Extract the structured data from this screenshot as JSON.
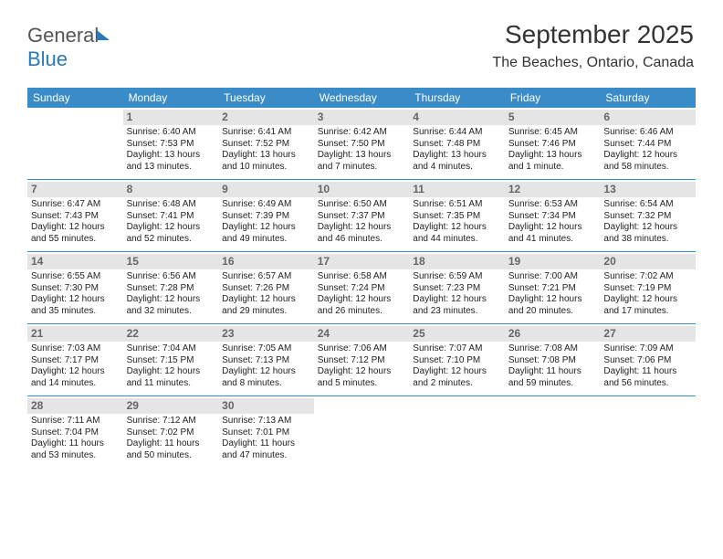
{
  "logo": {
    "text1": "General",
    "text2": "Blue"
  },
  "header": {
    "month_title": "September 2025",
    "location": "The Beaches, Ontario, Canada"
  },
  "colors": {
    "header_bg": "#3a8cc9",
    "header_fg": "#ffffff",
    "daynum_bg": "#e5e5e5",
    "daynum_fg": "#666666",
    "rule": "#3a8cc9"
  },
  "day_names": [
    "Sunday",
    "Monday",
    "Tuesday",
    "Wednesday",
    "Thursday",
    "Friday",
    "Saturday"
  ],
  "weeks": [
    [
      {
        "blank": true
      },
      {
        "n": "1",
        "sr": "Sunrise: 6:40 AM",
        "ss": "Sunset: 7:53 PM",
        "dl": "Daylight: 13 hours and 13 minutes."
      },
      {
        "n": "2",
        "sr": "Sunrise: 6:41 AM",
        "ss": "Sunset: 7:52 PM",
        "dl": "Daylight: 13 hours and 10 minutes."
      },
      {
        "n": "3",
        "sr": "Sunrise: 6:42 AM",
        "ss": "Sunset: 7:50 PM",
        "dl": "Daylight: 13 hours and 7 minutes."
      },
      {
        "n": "4",
        "sr": "Sunrise: 6:44 AM",
        "ss": "Sunset: 7:48 PM",
        "dl": "Daylight: 13 hours and 4 minutes."
      },
      {
        "n": "5",
        "sr": "Sunrise: 6:45 AM",
        "ss": "Sunset: 7:46 PM",
        "dl": "Daylight: 13 hours and 1 minute."
      },
      {
        "n": "6",
        "sr": "Sunrise: 6:46 AM",
        "ss": "Sunset: 7:44 PM",
        "dl": "Daylight: 12 hours and 58 minutes."
      }
    ],
    [
      {
        "n": "7",
        "sr": "Sunrise: 6:47 AM",
        "ss": "Sunset: 7:43 PM",
        "dl": "Daylight: 12 hours and 55 minutes."
      },
      {
        "n": "8",
        "sr": "Sunrise: 6:48 AM",
        "ss": "Sunset: 7:41 PM",
        "dl": "Daylight: 12 hours and 52 minutes."
      },
      {
        "n": "9",
        "sr": "Sunrise: 6:49 AM",
        "ss": "Sunset: 7:39 PM",
        "dl": "Daylight: 12 hours and 49 minutes."
      },
      {
        "n": "10",
        "sr": "Sunrise: 6:50 AM",
        "ss": "Sunset: 7:37 PM",
        "dl": "Daylight: 12 hours and 46 minutes."
      },
      {
        "n": "11",
        "sr": "Sunrise: 6:51 AM",
        "ss": "Sunset: 7:35 PM",
        "dl": "Daylight: 12 hours and 44 minutes."
      },
      {
        "n": "12",
        "sr": "Sunrise: 6:53 AM",
        "ss": "Sunset: 7:34 PM",
        "dl": "Daylight: 12 hours and 41 minutes."
      },
      {
        "n": "13",
        "sr": "Sunrise: 6:54 AM",
        "ss": "Sunset: 7:32 PM",
        "dl": "Daylight: 12 hours and 38 minutes."
      }
    ],
    [
      {
        "n": "14",
        "sr": "Sunrise: 6:55 AM",
        "ss": "Sunset: 7:30 PM",
        "dl": "Daylight: 12 hours and 35 minutes."
      },
      {
        "n": "15",
        "sr": "Sunrise: 6:56 AM",
        "ss": "Sunset: 7:28 PM",
        "dl": "Daylight: 12 hours and 32 minutes."
      },
      {
        "n": "16",
        "sr": "Sunrise: 6:57 AM",
        "ss": "Sunset: 7:26 PM",
        "dl": "Daylight: 12 hours and 29 minutes."
      },
      {
        "n": "17",
        "sr": "Sunrise: 6:58 AM",
        "ss": "Sunset: 7:24 PM",
        "dl": "Daylight: 12 hours and 26 minutes."
      },
      {
        "n": "18",
        "sr": "Sunrise: 6:59 AM",
        "ss": "Sunset: 7:23 PM",
        "dl": "Daylight: 12 hours and 23 minutes."
      },
      {
        "n": "19",
        "sr": "Sunrise: 7:00 AM",
        "ss": "Sunset: 7:21 PM",
        "dl": "Daylight: 12 hours and 20 minutes."
      },
      {
        "n": "20",
        "sr": "Sunrise: 7:02 AM",
        "ss": "Sunset: 7:19 PM",
        "dl": "Daylight: 12 hours and 17 minutes."
      }
    ],
    [
      {
        "n": "21",
        "sr": "Sunrise: 7:03 AM",
        "ss": "Sunset: 7:17 PM",
        "dl": "Daylight: 12 hours and 14 minutes."
      },
      {
        "n": "22",
        "sr": "Sunrise: 7:04 AM",
        "ss": "Sunset: 7:15 PM",
        "dl": "Daylight: 12 hours and 11 minutes."
      },
      {
        "n": "23",
        "sr": "Sunrise: 7:05 AM",
        "ss": "Sunset: 7:13 PM",
        "dl": "Daylight: 12 hours and 8 minutes."
      },
      {
        "n": "24",
        "sr": "Sunrise: 7:06 AM",
        "ss": "Sunset: 7:12 PM",
        "dl": "Daylight: 12 hours and 5 minutes."
      },
      {
        "n": "25",
        "sr": "Sunrise: 7:07 AM",
        "ss": "Sunset: 7:10 PM",
        "dl": "Daylight: 12 hours and 2 minutes."
      },
      {
        "n": "26",
        "sr": "Sunrise: 7:08 AM",
        "ss": "Sunset: 7:08 PM",
        "dl": "Daylight: 11 hours and 59 minutes."
      },
      {
        "n": "27",
        "sr": "Sunrise: 7:09 AM",
        "ss": "Sunset: 7:06 PM",
        "dl": "Daylight: 11 hours and 56 minutes."
      }
    ],
    [
      {
        "n": "28",
        "sr": "Sunrise: 7:11 AM",
        "ss": "Sunset: 7:04 PM",
        "dl": "Daylight: 11 hours and 53 minutes."
      },
      {
        "n": "29",
        "sr": "Sunrise: 7:12 AM",
        "ss": "Sunset: 7:02 PM",
        "dl": "Daylight: 11 hours and 50 minutes."
      },
      {
        "n": "30",
        "sr": "Sunrise: 7:13 AM",
        "ss": "Sunset: 7:01 PM",
        "dl": "Daylight: 11 hours and 47 minutes."
      },
      {
        "blank": true
      },
      {
        "blank": true
      },
      {
        "blank": true
      },
      {
        "blank": true
      }
    ]
  ]
}
